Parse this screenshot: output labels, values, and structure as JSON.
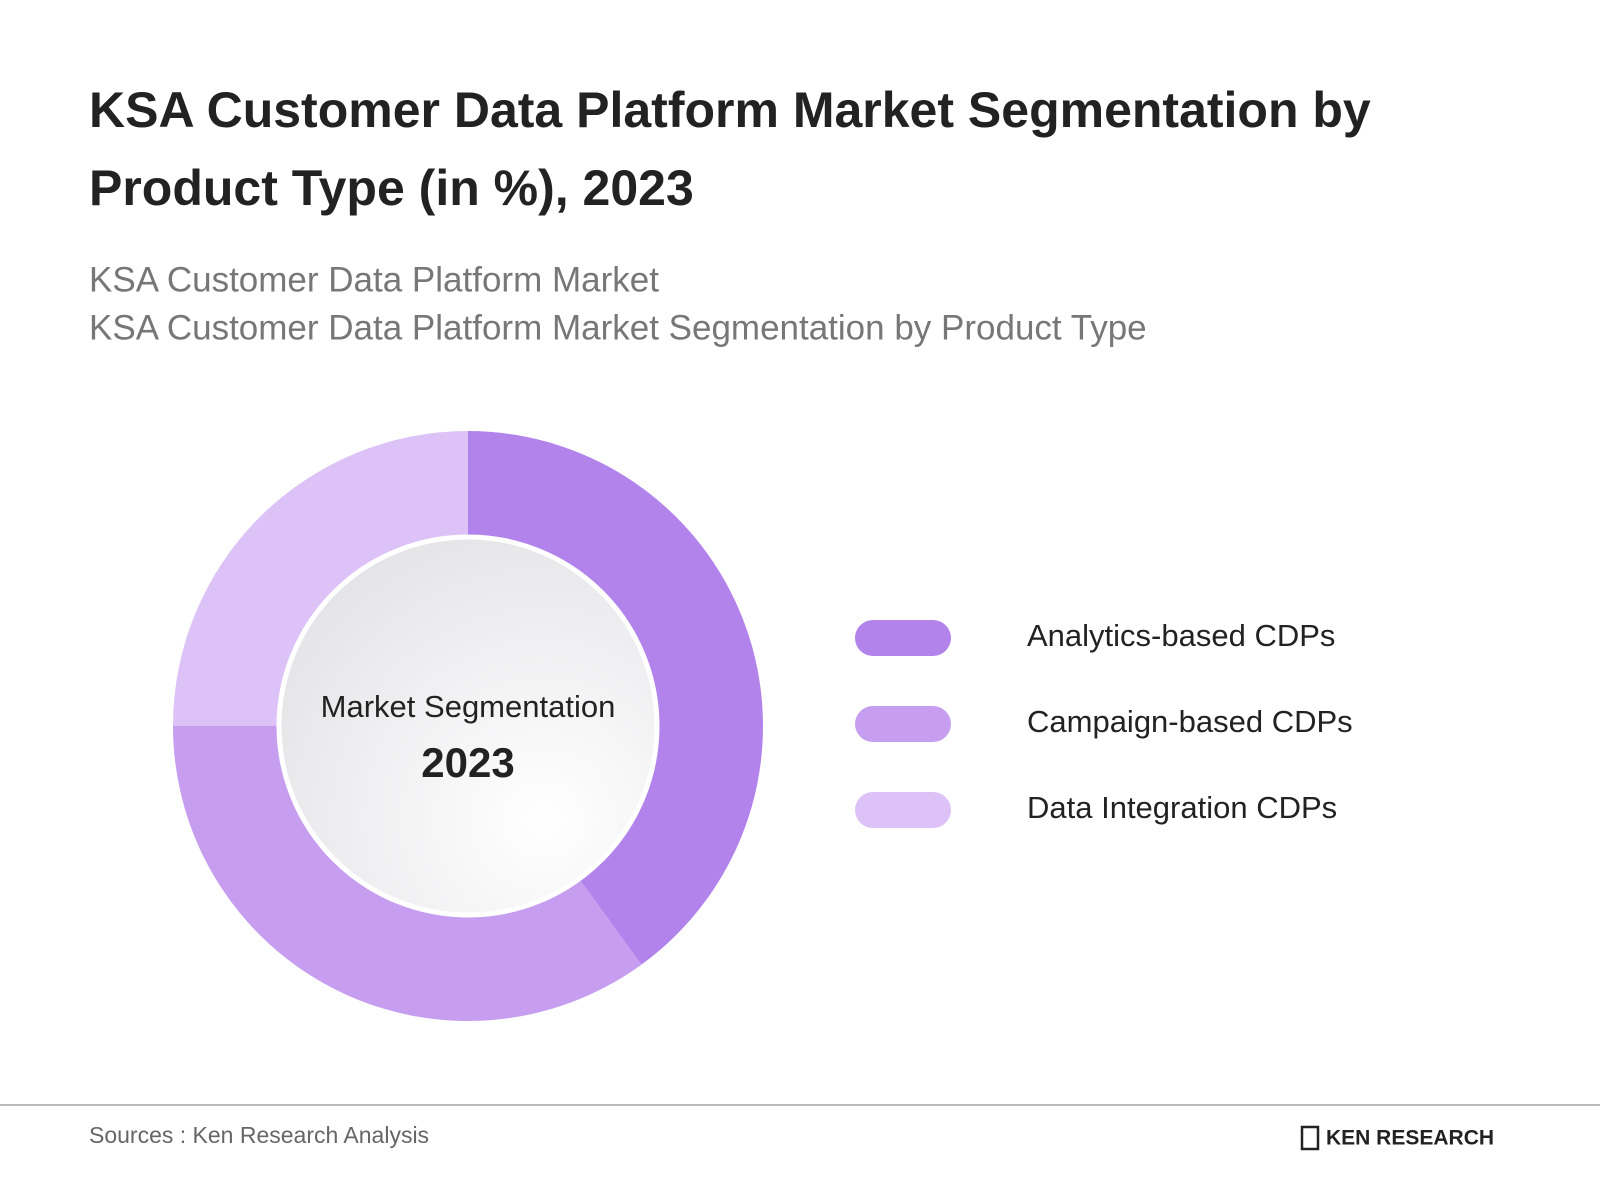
{
  "chart_data": {
    "type": "donut",
    "title": [
      "KSA Customer Data Platform Market Segmentation by",
      "Product Type (in %), 2023"
    ],
    "subtitle": [
      "KSA Customer Data Platform Market",
      "KSA Customer Data Platform Market Segmentation by Product Type"
    ],
    "center_text": [
      "Market Segmentation",
      "2023"
    ],
    "categories": [
      "Analytics-based CDPs",
      "Campaign-based CDPs",
      "Data Integration CDPs"
    ],
    "values": [
      40,
      35,
      25
    ],
    "colors": [
      "#b383ec",
      "#c79df0",
      "#dcc2f7"
    ]
  },
  "footer": {
    "source": "Sources : Ken Research Analysis",
    "logo": "KEN RESEARCH"
  }
}
